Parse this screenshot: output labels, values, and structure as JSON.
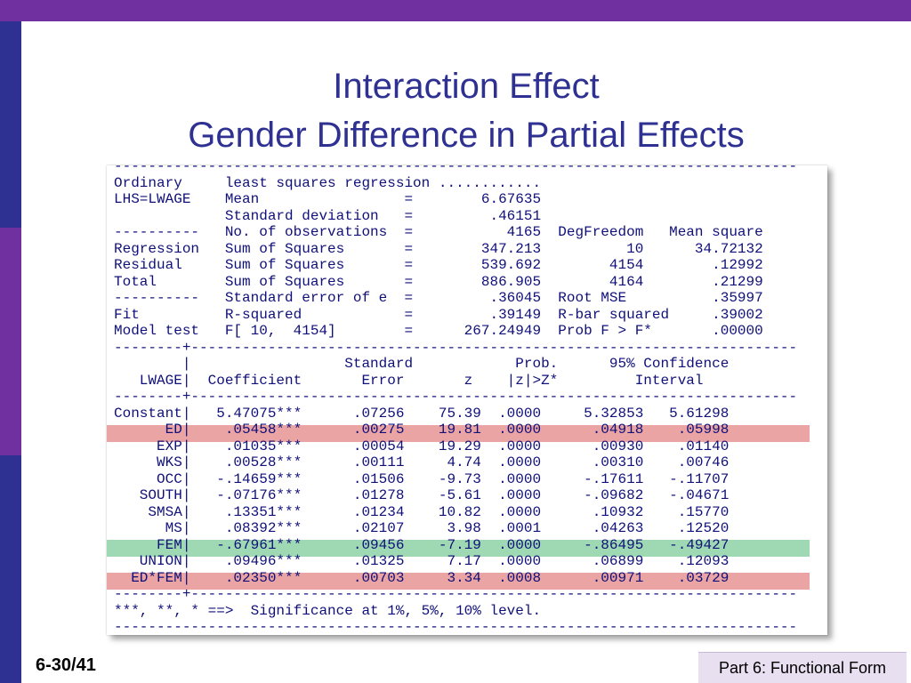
{
  "slide": {
    "title_line1": "Interaction Effect",
    "title_line2": "Gender Difference in Partial Effects",
    "slide_number": "6-30/41",
    "footer": "Part 6: Functional Form"
  },
  "colors": {
    "top_bar": "#7030a0",
    "title_text": "#2e3192",
    "console_text": "#10107a",
    "highlight_red": "#eba4a4",
    "highlight_green": "#9fd9b4"
  },
  "output": {
    "lines": [
      "--------------------------------------------------------------------------------",
      "Ordinary     least squares regression ............",
      "LHS=LWAGE    Mean                 =        6.67635",
      "             Standard deviation   =         .46151",
      "----------   No. of observations  =           4165  DegFreedom   Mean square",
      "Regression   Sum of Squares       =        347.213          10      34.72132",
      "Residual     Sum of Squares       =        539.692        4154        .12992",
      "Total        Sum of Squares       =        886.905        4164        .21299",
      "----------   Standard error of e  =         .36045  Root MSE          .35997",
      "Fit          R-squared            =         .39149  R-bar squared     .39002",
      "Model test   F[ 10,  4154]        =      267.24949  Prob F > F*       .00000",
      "--------+-----------------------------------------------------------------------",
      "        |                  Standard            Prob.      95% Confidence",
      "   LWAGE|  Coefficient       Error       z    |z|>Z*         Interval",
      "--------+-----------------------------------------------------------------------",
      "Constant|   5.47075***      .07256    75.39  .0000     5.32853   5.61298",
      "      ED|    .05458***      .00275    19.81  .0000      .04918    .05998",
      "     EXP|    .01035***      .00054    19.29  .0000      .00930    .01140",
      "     WKS|    .00528***      .00111     4.74  .0000      .00310    .00746",
      "     OCC|   -.14659***      .01506    -9.73  .0000     -.17611   -.11707",
      "   SOUTH|   -.07176***      .01278    -5.61  .0000     -.09682   -.04671",
      "    SMSA|    .13351***      .01234    10.82  .0000      .10932    .15770",
      "      MS|    .08392***      .02107     3.98  .0001      .04263    .12520",
      "     FEM|   -.67961***      .09456    -7.19  .0000     -.86495   -.49427",
      "   UNION|    .09496***      .01325     7.17  .0000      .06899    .12093",
      "  ED*FEM|    .02350***      .00703     3.34  .0008      .00971    .03729",
      "--------+-----------------------------------------------------------------------",
      "***, **, * ==>  Significance at 1%, 5%, 10% level.",
      "--------------------------------------------------------------------------------"
    ]
  }
}
